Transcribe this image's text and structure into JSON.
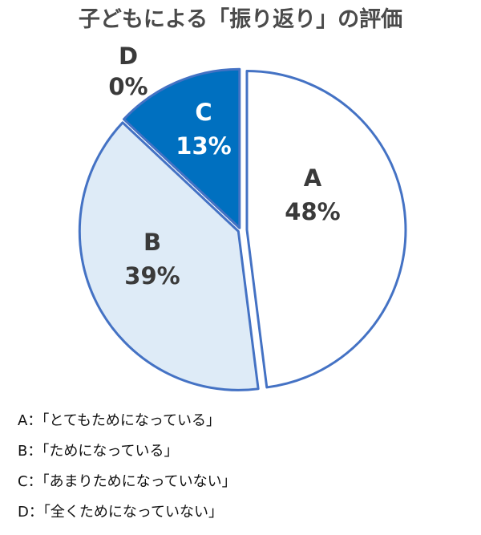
{
  "chart_data": {
    "type": "pie",
    "title": "子どもによる「振り返り」の評価",
    "slices": [
      {
        "letter": "A",
        "value": 48,
        "label": "48%",
        "fill": "#ffffff",
        "text_color": "#3a3a3a"
      },
      {
        "letter": "B",
        "value": 39,
        "label": "39%",
        "fill": "#deebf7",
        "text_color": "#3a3a3a"
      },
      {
        "letter": "C",
        "value": 13,
        "label": "13%",
        "fill": "#0070c0",
        "text_color": "#ffffff"
      },
      {
        "letter": "D",
        "value": 0,
        "label": "0%",
        "fill": "#0070c0",
        "text_color": "#3a3a3a"
      }
    ],
    "stroke_color": "#4472c4",
    "legend": [
      {
        "key": "A",
        "text": "A：「とてもためになっている」"
      },
      {
        "key": "B",
        "text": "B：「ためになっている」"
      },
      {
        "key": "C",
        "text": "C：「あまりためになっていない」"
      },
      {
        "key": "D",
        "text": "D：「全くためになっていない」"
      }
    ],
    "legend_position": "bottom-left"
  }
}
